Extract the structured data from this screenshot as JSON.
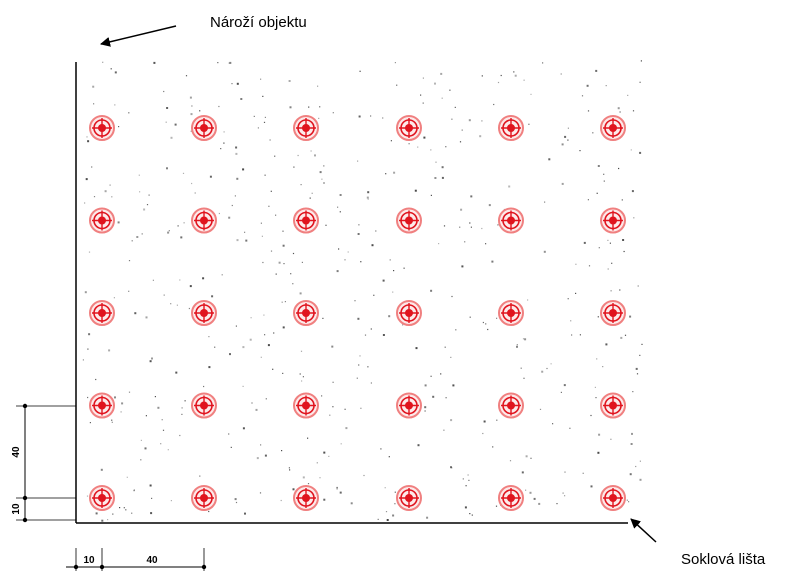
{
  "labels": {
    "corner": "Nároží objektu",
    "plinth": "Soklová lišta"
  },
  "dimensions": {
    "vertical_edge": "10",
    "vertical_spacing": "40",
    "horizontal_edge": "10",
    "horizontal_spacing": "40"
  },
  "anchor_grid": {
    "columns": 6,
    "rows": 5
  },
  "colors": {
    "anchor": "#e0141e",
    "anchor_light": "#f08080",
    "lines": "#000000",
    "speckle": "#333333"
  }
}
